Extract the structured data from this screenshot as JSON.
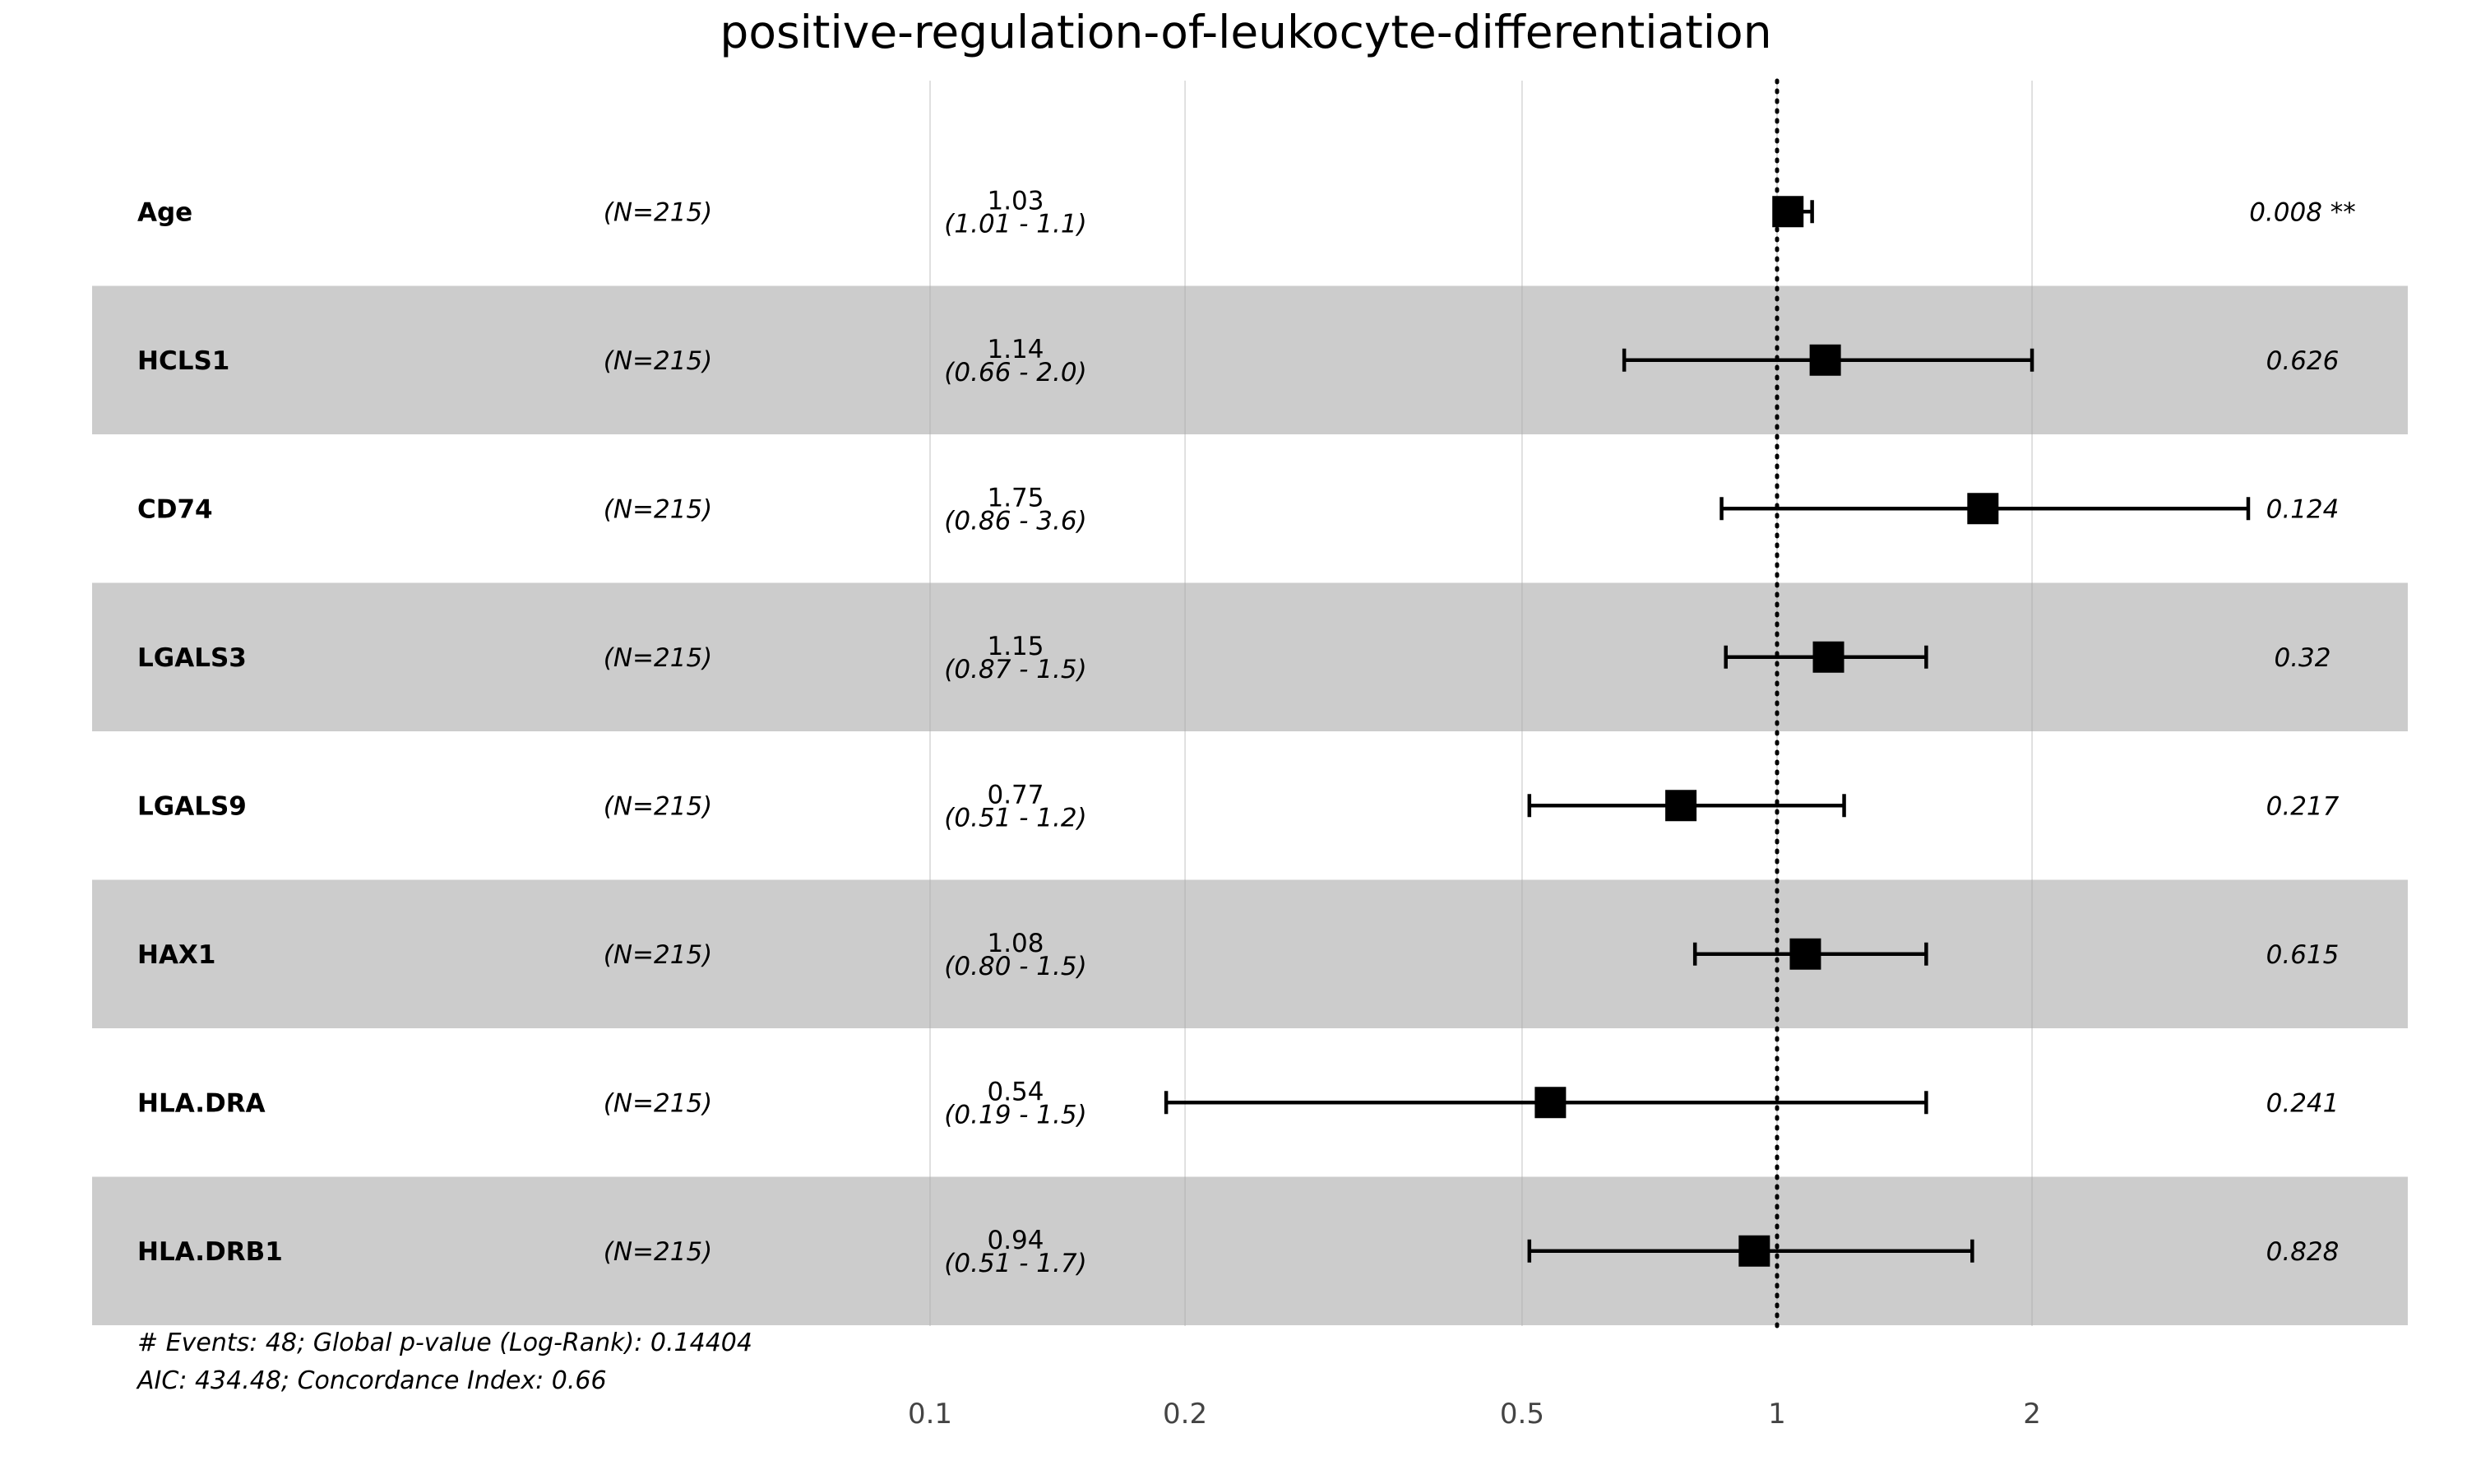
{
  "chart_data": {
    "type": "forest",
    "title": "positive-regulation-of-leukocyte-differentiation",
    "x_scale": "log",
    "xlim": [
      0.1,
      4
    ],
    "x_ticks": [
      0.1,
      0.2,
      0.5,
      1,
      2
    ],
    "x_tick_labels": [
      "0.1",
      "0.2",
      "0.5",
      "1",
      "2"
    ],
    "reference_line": 1,
    "rows": [
      {
        "variable": "Age",
        "n": "(N=215)",
        "hr": 1.03,
        "hr_label": "1.03",
        "lower": 1.01,
        "upper": 1.1,
        "ci_label": "(1.01 - 1.1)",
        "p_label": "0.008 **",
        "shaded": false
      },
      {
        "variable": "HCLS1",
        "n": "(N=215)",
        "hr": 1.14,
        "hr_label": "1.14",
        "lower": 0.66,
        "upper": 2.0,
        "ci_label": "(0.66 - 2.0)",
        "p_label": "0.626",
        "shaded": true
      },
      {
        "variable": "CD74",
        "n": "(N=215)",
        "hr": 1.75,
        "hr_label": "1.75",
        "lower": 0.86,
        "upper": 3.6,
        "ci_label": "(0.86 - 3.6)",
        "p_label": "0.124",
        "shaded": false
      },
      {
        "variable": "LGALS3",
        "n": "(N=215)",
        "hr": 1.15,
        "hr_label": "1.15",
        "lower": 0.87,
        "upper": 1.5,
        "ci_label": "(0.87 - 1.5)",
        "p_label": "0.32",
        "shaded": true
      },
      {
        "variable": "LGALS9",
        "n": "(N=215)",
        "hr": 0.77,
        "hr_label": "0.77",
        "lower": 0.51,
        "upper": 1.2,
        "ci_label": "(0.51 - 1.2)",
        "p_label": "0.217",
        "shaded": false
      },
      {
        "variable": "HAX1",
        "n": "(N=215)",
        "hr": 1.08,
        "hr_label": "1.08",
        "lower": 0.8,
        "upper": 1.5,
        "ci_label": "(0.80 - 1.5)",
        "p_label": "0.615",
        "shaded": true
      },
      {
        "variable": "HLA.DRA",
        "n": "(N=215)",
        "hr": 0.54,
        "hr_label": "0.54",
        "lower": 0.19,
        "upper": 1.5,
        "ci_label": "(0.19 - 1.5)",
        "p_label": "0.241",
        "shaded": false
      },
      {
        "variable": "HLA.DRB1",
        "n": "(N=215)",
        "hr": 0.94,
        "hr_label": "0.94",
        "lower": 0.51,
        "upper": 1.7,
        "ci_label": "(0.51 - 1.7)",
        "p_label": "0.828",
        "shaded": true
      }
    ],
    "footer": [
      "# Events: 48; Global p-value (Log-Rank): 0.14404",
      "AIC: 434.48; Concordance Index: 0.66"
    ],
    "colors": {
      "shade": "#cccccc",
      "marker": "#000000",
      "grid": "#aaaaaa",
      "text": "#000000",
      "tick_text": "#444444"
    }
  }
}
